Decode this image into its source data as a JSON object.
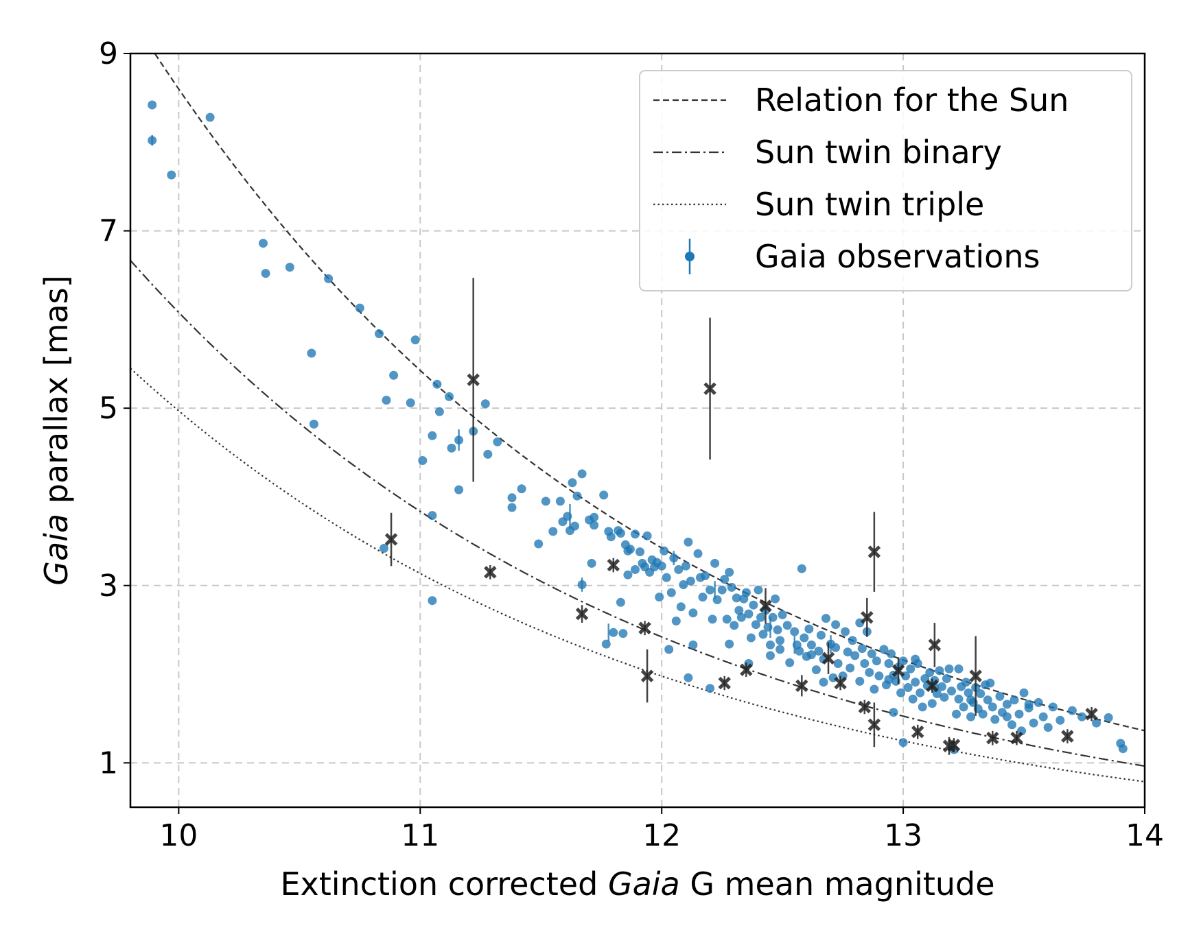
{
  "chart_data": {
    "type": "scatter",
    "xlabel_parts": [
      "Extinction corrected ",
      "Gaia",
      " G mean magnitude"
    ],
    "ylabel_parts": [
      "Gaia",
      " parallax [mas]"
    ],
    "xlim": [
      9.8,
      14.0
    ],
    "ylim": [
      0.5,
      9.0
    ],
    "xticks": [
      10,
      11,
      12,
      13,
      14
    ],
    "yticks": [
      1,
      3,
      5,
      7,
      9
    ],
    "grid": true,
    "legend_position": "top-right",
    "colors": {
      "observations": "#1f77b4",
      "marked": "#222222",
      "curves": "#333333"
    },
    "curves": [
      {
        "name": "Relation for the Sun",
        "style": "dashed",
        "parallax_at_mag10": 8.6,
        "x_start": 9.88,
        "x_end": 14.0
      },
      {
        "name": "Sun twin binary",
        "style": "dashdot",
        "parallax_at_mag10": 6.08,
        "x_start": 9.8,
        "x_end": 14.0
      },
      {
        "name": "Sun twin triple",
        "style": "dotted",
        "parallax_at_mag10": 4.97,
        "x_start": 9.8,
        "x_end": 14.0
      }
    ],
    "observations_label": "Gaia observations",
    "observations": [
      [
        9.89,
        8.42
      ],
      [
        9.89,
        8.02
      ],
      [
        9.97,
        7.63
      ],
      [
        10.13,
        8.28
      ],
      [
        10.35,
        6.86
      ],
      [
        10.36,
        6.52
      ],
      [
        10.46,
        6.59
      ],
      [
        10.55,
        5.62
      ],
      [
        10.56,
        4.82
      ],
      [
        10.62,
        6.46
      ],
      [
        10.75,
        6.13
      ],
      [
        10.83,
        5.84
      ],
      [
        10.85,
        3.42
      ],
      [
        10.86,
        5.09
      ],
      [
        10.89,
        5.37
      ],
      [
        10.96,
        5.06
      ],
      [
        10.98,
        5.77
      ],
      [
        11.01,
        4.41
      ],
      [
        11.05,
        4.69
      ],
      [
        11.07,
        5.27
      ],
      [
        11.08,
        4.96
      ],
      [
        11.12,
        5.13
      ],
      [
        11.13,
        4.55
      ],
      [
        11.16,
        4.08
      ],
      [
        11.16,
        4.64
      ],
      [
        11.05,
        3.79
      ],
      [
        11.05,
        2.83
      ],
      [
        11.22,
        4.74
      ],
      [
        11.27,
        5.05
      ],
      [
        11.28,
        4.48
      ],
      [
        11.32,
        4.62
      ],
      [
        11.38,
        3.99
      ],
      [
        11.38,
        3.88
      ],
      [
        11.42,
        4.09
      ],
      [
        11.49,
        3.47
      ],
      [
        11.52,
        3.95
      ],
      [
        11.55,
        3.61
      ],
      [
        11.58,
        3.95
      ],
      [
        11.59,
        3.72
      ],
      [
        11.61,
        3.78
      ],
      [
        11.62,
        3.62
      ],
      [
        11.63,
        4.16
      ],
      [
        11.64,
        3.67
      ],
      [
        11.65,
        4.01
      ],
      [
        11.67,
        3.01
      ],
      [
        11.67,
        4.26
      ],
      [
        11.7,
        3.74
      ],
      [
        11.71,
        3.25
      ],
      [
        11.72,
        3.77
      ],
      [
        11.72,
        3.68
      ],
      [
        11.76,
        4.02
      ],
      [
        11.77,
        2.34
      ],
      [
        11.78,
        3.61
      ],
      [
        11.79,
        3.55
      ],
      [
        11.8,
        2.47
      ],
      [
        11.82,
        3.62
      ],
      [
        11.83,
        2.81
      ],
      [
        11.84,
        2.46
      ],
      [
        11.85,
        3.46
      ],
      [
        11.86,
        3.39
      ],
      [
        11.86,
        3.12
      ],
      [
        11.87,
        3.41
      ],
      [
        11.89,
        3.18
      ],
      [
        11.89,
        3.58
      ],
      [
        11.91,
        3.38
      ],
      [
        11.92,
        3.25
      ],
      [
        11.93,
        3.21
      ],
      [
        11.94,
        3.56
      ],
      [
        11.95,
        3.15
      ],
      [
        11.96,
        3.29
      ],
      [
        11.97,
        3.21
      ],
      [
        11.98,
        3.26
      ],
      [
        11.99,
        2.87
      ],
      [
        12.0,
        3.22
      ],
      [
        12.01,
        3.39
      ],
      [
        12.02,
        3.09
      ],
      [
        12.04,
        2.92
      ],
      [
        12.05,
        3.31
      ],
      [
        12.06,
        2.6
      ],
      [
        12.07,
        3.18
      ],
      [
        12.08,
        2.76
      ],
      [
        12.09,
        3.01
      ],
      [
        12.1,
        3.22
      ],
      [
        12.11,
        3.49
      ],
      [
        12.12,
        3.05
      ],
      [
        12.13,
        2.69
      ],
      [
        12.15,
        3.36
      ],
      [
        12.16,
        3.09
      ],
      [
        12.17,
        2.87
      ],
      [
        12.18,
        3.11
      ],
      [
        12.2,
        2.95
      ],
      [
        12.21,
        2.62
      ],
      [
        12.22,
        3.25
      ],
      [
        12.23,
        2.84
      ],
      [
        12.25,
        2.95
      ],
      [
        12.26,
        3.07
      ],
      [
        12.27,
        2.62
      ],
      [
        12.28,
        3.15
      ],
      [
        12.29,
        2.98
      ],
      [
        12.3,
        2.55
      ],
      [
        12.31,
        2.86
      ],
      [
        12.32,
        2.72
      ],
      [
        12.33,
        2.64
      ],
      [
        12.34,
        2.85
      ],
      [
        12.35,
        2.92
      ],
      [
        12.36,
        2.68
      ],
      [
        12.37,
        2.41
      ],
      [
        12.38,
        2.78
      ],
      [
        12.39,
        2.56
      ],
      [
        12.4,
        2.95
      ],
      [
        12.41,
        2.64
      ],
      [
        12.42,
        2.45
      ],
      [
        12.43,
        2.72
      ],
      [
        12.44,
        2.53
      ],
      [
        12.45,
        2.33
      ],
      [
        12.46,
        2.64
      ],
      [
        12.47,
        2.85
      ],
      [
        12.48,
        2.5
      ],
      [
        12.49,
        2.38
      ],
      [
        12.5,
        2.67
      ],
      [
        12.52,
        2.55
      ],
      [
        12.53,
        2.13
      ],
      [
        12.55,
        2.48
      ],
      [
        12.56,
        2.33
      ],
      [
        12.58,
        3.19
      ],
      [
        12.59,
        2.41
      ],
      [
        12.6,
        2.2
      ],
      [
        12.61,
        2.51
      ],
      [
        12.62,
        2.33
      ],
      [
        12.64,
        2.05
      ],
      [
        12.65,
        2.26
      ],
      [
        12.66,
        2.44
      ],
      [
        12.67,
        2.17
      ],
      [
        12.68,
        2.63
      ],
      [
        12.7,
        2.34
      ],
      [
        12.71,
        1.96
      ],
      [
        12.72,
        2.3
      ],
      [
        12.73,
        2.12
      ],
      [
        12.75,
        1.98
      ],
      [
        12.76,
        2.48
      ],
      [
        12.77,
        2.25
      ],
      [
        12.78,
        2.07
      ],
      [
        12.79,
        2.38
      ],
      [
        12.8,
        2.21
      ],
      [
        12.82,
        1.92
      ],
      [
        12.83,
        2.29
      ],
      [
        12.84,
        2.12
      ],
      [
        12.85,
        2.48
      ],
      [
        12.86,
        2.02
      ],
      [
        12.87,
        2.23
      ],
      [
        12.88,
        1.83
      ],
      [
        12.89,
        2.15
      ],
      [
        12.9,
        1.98
      ],
      [
        12.92,
        2.28
      ],
      [
        12.93,
        1.88
      ],
      [
        12.94,
        2.12
      ],
      [
        12.95,
        2.23
      ],
      [
        12.96,
        1.57
      ],
      [
        12.97,
        1.92
      ],
      [
        12.98,
        2.08
      ],
      [
        12.99,
        1.79
      ],
      [
        13.0,
        2.15
      ],
      [
        13.01,
        1.98
      ],
      [
        13.02,
        1.85
      ],
      [
        13.03,
        2.06
      ],
      [
        13.04,
        1.72
      ],
      [
        13.05,
        1.91
      ],
      [
        13.06,
        2.12
      ],
      [
        13.07,
        1.79
      ],
      [
        13.08,
        1.63
      ],
      [
        13.09,
        1.95
      ],
      [
        13.1,
        1.87
      ],
      [
        13.11,
        2.02
      ],
      [
        13.12,
        1.67
      ],
      [
        13.13,
        1.93
      ],
      [
        13.14,
        1.78
      ],
      [
        13.15,
        2.04
      ],
      [
        13.16,
        1.86
      ],
      [
        13.17,
        1.74
      ],
      [
        13.18,
        1.95
      ],
      [
        13.19,
        2.06
      ],
      [
        13.2,
        1.81
      ],
      [
        13.22,
        1.55
      ],
      [
        13.23,
        1.72
      ],
      [
        13.24,
        1.86
      ],
      [
        13.25,
        1.63
      ],
      [
        13.26,
        1.91
      ],
      [
        13.27,
        1.79
      ],
      [
        13.28,
        1.52
      ],
      [
        13.29,
        1.68
      ],
      [
        13.3,
        1.85
      ],
      [
        13.31,
        1.61
      ],
      [
        13.32,
        1.78
      ],
      [
        13.33,
        1.55
      ],
      [
        13.35,
        1.71
      ],
      [
        13.36,
        1.9
      ],
      [
        13.37,
        1.63
      ],
      [
        13.38,
        1.49
      ],
      [
        13.4,
        1.75
      ],
      [
        13.41,
        1.57
      ],
      [
        13.43,
        1.66
      ],
      [
        13.45,
        1.43
      ],
      [
        13.46,
        1.71
      ],
      [
        13.48,
        1.55
      ],
      [
        13.49,
        1.36
      ],
      [
        13.5,
        1.79
      ],
      [
        13.52,
        1.62
      ],
      [
        13.54,
        1.45
      ],
      [
        13.56,
        1.68
      ],
      [
        13.58,
        1.52
      ],
      [
        13.6,
        1.4
      ],
      [
        13.62,
        1.63
      ],
      [
        13.65,
        1.48
      ],
      [
        13.7,
        1.59
      ],
      [
        13.74,
        1.52
      ],
      [
        13.8,
        1.45
      ],
      [
        13.85,
        1.51
      ],
      [
        13.9,
        1.22
      ],
      [
        13.91,
        1.16
      ],
      [
        13.0,
        1.23
      ],
      [
        13.21,
        1.15
      ],
      [
        12.96,
        1.99
      ],
      [
        12.67,
        1.91
      ],
      [
        12.57,
        2.26
      ],
      [
        12.45,
        2.21
      ],
      [
        12.13,
        2.33
      ],
      [
        12.03,
        2.28
      ],
      [
        12.11,
        1.96
      ],
      [
        12.2,
        1.84
      ],
      [
        11.83,
        3.59
      ],
      [
        12.28,
        2.34
      ],
      [
        12.36,
        2.12
      ],
      [
        12.49,
        2.28
      ],
      [
        12.62,
        2.22
      ],
      [
        12.72,
        2.56
      ],
      [
        12.82,
        2.58
      ],
      [
        12.94,
        1.94
      ],
      [
        13.05,
        2.17
      ],
      [
        13.13,
        1.85
      ],
      [
        13.23,
        2.06
      ],
      [
        13.28,
        1.71
      ],
      [
        13.34,
        1.88
      ],
      [
        13.43,
        1.52
      ],
      [
        13.52,
        1.66
      ]
    ],
    "obs_errors": [
      [
        9.89,
        8.02,
        0.06
      ],
      [
        11.16,
        4.64,
        0.12
      ],
      [
        11.62,
        3.78,
        0.14
      ],
      [
        11.78,
        2.47,
        0.1
      ],
      [
        12.22,
        2.95,
        0.1
      ],
      [
        12.45,
        2.53,
        0.12
      ],
      [
        12.55,
        2.33,
        0.1
      ],
      [
        12.7,
        2.34,
        0.1
      ],
      [
        12.05,
        3.31,
        0.08
      ],
      [
        11.67,
        3.01,
        0.08
      ]
    ],
    "marked_label": "",
    "marked": [
      [
        10.88,
        3.52,
        0.3
      ],
      [
        11.22,
        5.32,
        1.15
      ],
      [
        11.29,
        3.15,
        0.08
      ],
      [
        11.67,
        2.68,
        0.1
      ],
      [
        11.8,
        3.23,
        0.08
      ],
      [
        11.93,
        2.52,
        0.08
      ],
      [
        11.94,
        1.98,
        0.3
      ],
      [
        12.2,
        5.22,
        0.8
      ],
      [
        12.26,
        1.9,
        0.08
      ],
      [
        12.35,
        2.05,
        0.08
      ],
      [
        12.43,
        2.77,
        0.2
      ],
      [
        12.58,
        1.87,
        0.12
      ],
      [
        12.69,
        2.18,
        0.18
      ],
      [
        12.74,
        1.9,
        0.08
      ],
      [
        12.84,
        1.63,
        0.08
      ],
      [
        12.85,
        2.64,
        0.22
      ],
      [
        12.88,
        3.38,
        0.45
      ],
      [
        12.88,
        1.43,
        0.25
      ],
      [
        12.98,
        2.04,
        0.15
      ],
      [
        13.06,
        1.35,
        0.08
      ],
      [
        13.12,
        1.87,
        0.08
      ],
      [
        13.13,
        2.33,
        0.25
      ],
      [
        13.19,
        1.19,
        0.1
      ],
      [
        13.21,
        1.2,
        0.08
      ],
      [
        13.3,
        1.98,
        0.45
      ],
      [
        13.37,
        1.28,
        0.08
      ],
      [
        13.47,
        1.28,
        0.08
      ],
      [
        13.68,
        1.3,
        0.08
      ],
      [
        13.78,
        1.55,
        0.08
      ]
    ]
  }
}
